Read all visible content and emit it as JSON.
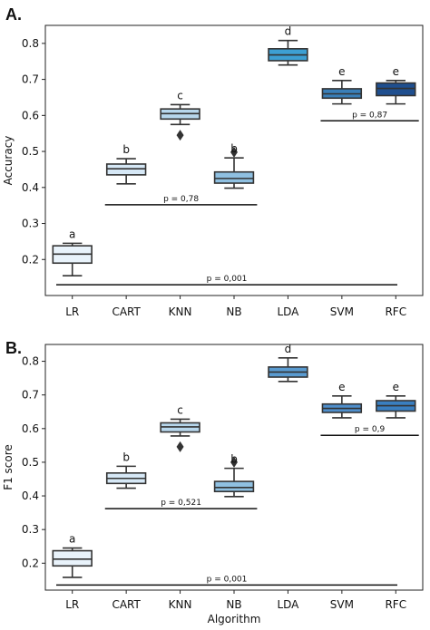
{
  "chart_data": [
    {
      "type": "box",
      "panel_label": "A.",
      "ylabel": "Accuracy",
      "xlabel": "",
      "ylim": [
        0.1,
        0.85
      ],
      "yticks": [
        0.2,
        0.3,
        0.4,
        0.5,
        0.6,
        0.7,
        0.8
      ],
      "ytick_labels": [
        "0.2",
        "0.3",
        "0.4",
        "0.5",
        "0.6",
        "0.7",
        "0.8"
      ],
      "categories": [
        "LR",
        "CART",
        "KNN",
        "NB",
        "LDA",
        "SVM",
        "RFC"
      ],
      "colors": [
        "#e9f3fb",
        "#d6e8f6",
        "#b7d7ec",
        "#8fc0e1",
        "#3d9fd2",
        "#3a7fb8",
        "#1f4f8f"
      ],
      "boxes": [
        {
          "category": "LR",
          "whisker_low": 0.155,
          "q1": 0.19,
          "median": 0.215,
          "q3": 0.238,
          "whisker_high": 0.245,
          "outliers": [],
          "letter": "a"
        },
        {
          "category": "CART",
          "whisker_low": 0.41,
          "q1": 0.435,
          "median": 0.452,
          "q3": 0.465,
          "whisker_high": 0.48,
          "outliers": [],
          "letter": "b"
        },
        {
          "category": "KNN",
          "whisker_low": 0.575,
          "q1": 0.59,
          "median": 0.605,
          "q3": 0.618,
          "whisker_high": 0.63,
          "outliers": [
            0.545
          ],
          "letter": "c"
        },
        {
          "category": "NB",
          "whisker_low": 0.398,
          "q1": 0.412,
          "median": 0.425,
          "q3": 0.443,
          "whisker_high": 0.482,
          "outliers": [
            0.498
          ],
          "letter": "b"
        },
        {
          "category": "LDA",
          "whisker_low": 0.74,
          "q1": 0.752,
          "median": 0.768,
          "q3": 0.785,
          "whisker_high": 0.808,
          "outliers": [],
          "letter": "d"
        },
        {
          "category": "SVM",
          "whisker_low": 0.632,
          "q1": 0.648,
          "median": 0.66,
          "q3": 0.674,
          "whisker_high": 0.697,
          "outliers": [],
          "letter": "e"
        },
        {
          "category": "RFC",
          "whisker_low": 0.632,
          "q1": 0.655,
          "median": 0.675,
          "q3": 0.69,
          "whisker_high": 0.697,
          "outliers": [],
          "letter": "e"
        }
      ],
      "comparisons": [
        {
          "from": "CART",
          "to": "NB",
          "y": 0.352,
          "label": "p = 0,78"
        },
        {
          "from": "SVM",
          "to": "RFC",
          "y": 0.585,
          "label": "p = 0,87"
        },
        {
          "from": "LR",
          "to": "RFC",
          "y": 0.13,
          "label": "p = 0,001"
        }
      ]
    },
    {
      "type": "box",
      "panel_label": "B.",
      "ylabel": "F1 score",
      "xlabel": "Algorithm",
      "ylim": [
        0.12,
        0.85
      ],
      "yticks": [
        0.2,
        0.3,
        0.4,
        0.5,
        0.6,
        0.7,
        0.8
      ],
      "ytick_labels": [
        "0.2",
        "0.3",
        "0.4",
        "0.5",
        "0.6",
        "0.7",
        "0.8"
      ],
      "categories": [
        "LR",
        "CART",
        "KNN",
        "NB",
        "LDA",
        "SVM",
        "RFC"
      ],
      "colors": [
        "#e9f3fb",
        "#d6e8f6",
        "#b7d7ec",
        "#8fc0e1",
        "#5a9bd0",
        "#4f8fcc",
        "#3a7fc0"
      ],
      "boxes": [
        {
          "category": "LR",
          "whisker_low": 0.158,
          "q1": 0.192,
          "median": 0.212,
          "q3": 0.237,
          "whisker_high": 0.245,
          "outliers": [],
          "letter": "a"
        },
        {
          "category": "CART",
          "whisker_low": 0.423,
          "q1": 0.437,
          "median": 0.452,
          "q3": 0.468,
          "whisker_high": 0.488,
          "outliers": [],
          "letter": "b"
        },
        {
          "category": "KNN",
          "whisker_low": 0.578,
          "q1": 0.59,
          "median": 0.605,
          "q3": 0.617,
          "whisker_high": 0.628,
          "outliers": [
            0.546
          ],
          "letter": "c"
        },
        {
          "category": "NB",
          "whisker_low": 0.398,
          "q1": 0.413,
          "median": 0.425,
          "q3": 0.443,
          "whisker_high": 0.482,
          "outliers": [
            0.5
          ],
          "letter": "b"
        },
        {
          "category": "LDA",
          "whisker_low": 0.74,
          "q1": 0.753,
          "median": 0.768,
          "q3": 0.783,
          "whisker_high": 0.81,
          "outliers": [],
          "letter": "d"
        },
        {
          "category": "SVM",
          "whisker_low": 0.632,
          "q1": 0.648,
          "median": 0.66,
          "q3": 0.673,
          "whisker_high": 0.697,
          "outliers": [],
          "letter": "e"
        },
        {
          "category": "RFC",
          "whisker_low": 0.632,
          "q1": 0.652,
          "median": 0.668,
          "q3": 0.683,
          "whisker_high": 0.697,
          "outliers": [],
          "letter": "e"
        }
      ],
      "comparisons": [
        {
          "from": "CART",
          "to": "NB",
          "y": 0.362,
          "label": "p = 0,521"
        },
        {
          "from": "SVM",
          "to": "RFC",
          "y": 0.58,
          "label": "p = 0,9"
        },
        {
          "from": "LR",
          "to": "RFC",
          "y": 0.135,
          "label": "p = 0,001"
        }
      ]
    }
  ]
}
